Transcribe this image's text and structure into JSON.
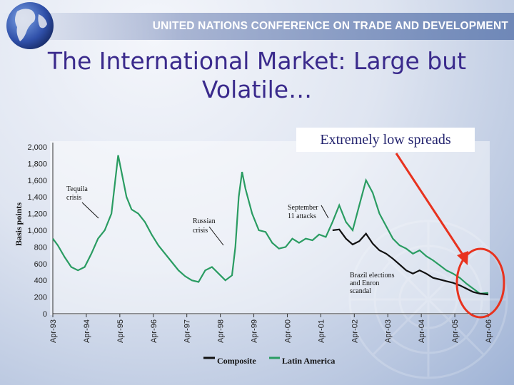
{
  "header": {
    "banner_text": "UNITED NATIONS CONFERENCE ON TRADE AND DEVELOPMENT",
    "title_line1": "The International Market: Large but",
    "title_line2": "Volatile…"
  },
  "callout": {
    "text": "Extremely low spreads"
  },
  "colors": {
    "composite": "#111111",
    "latin_america": "#2a9c62",
    "arrow": "#e8321e",
    "title": "#3a2a8c"
  },
  "chart_data": {
    "type": "line",
    "xlabel": "",
    "ylabel": "Basis points",
    "ylim": [
      0,
      2000
    ],
    "yticks": [
      "0",
      "200",
      "400",
      "600",
      "800",
      "1,000",
      "1,200",
      "1,400",
      "1,600",
      "1,800",
      "2,000"
    ],
    "xticks": [
      "Apr-93",
      "Apr-94",
      "Apr-95",
      "Apr-96",
      "Apr-97",
      "Apr-98",
      "Apr-99",
      "Apr-00",
      "Apr-01",
      "Apr-02",
      "Apr-03",
      "Apr-04",
      "Apr-05",
      "Apr-06"
    ],
    "x_range": [
      1993.25,
      2006.25
    ],
    "series": [
      {
        "name": "Composite",
        "points": [
          [
            2001.6,
            1000
          ],
          [
            2001.8,
            1010
          ],
          [
            2002.0,
            900
          ],
          [
            2002.2,
            830
          ],
          [
            2002.4,
            870
          ],
          [
            2002.6,
            960
          ],
          [
            2002.8,
            840
          ],
          [
            2003.0,
            760
          ],
          [
            2003.2,
            720
          ],
          [
            2003.4,
            660
          ],
          [
            2003.6,
            590
          ],
          [
            2003.8,
            520
          ],
          [
            2004.0,
            480
          ],
          [
            2004.2,
            520
          ],
          [
            2004.4,
            480
          ],
          [
            2004.6,
            430
          ],
          [
            2004.8,
            410
          ],
          [
            2005.0,
            390
          ],
          [
            2005.2,
            370
          ],
          [
            2005.4,
            340
          ],
          [
            2005.6,
            300
          ],
          [
            2005.8,
            260
          ],
          [
            2006.0,
            240
          ],
          [
            2006.25,
            230
          ]
        ]
      },
      {
        "name": "Latin America",
        "points": [
          [
            1993.25,
            900
          ],
          [
            1993.4,
            820
          ],
          [
            1993.6,
            680
          ],
          [
            1993.8,
            560
          ],
          [
            1994.0,
            520
          ],
          [
            1994.2,
            560
          ],
          [
            1994.4,
            720
          ],
          [
            1994.6,
            900
          ],
          [
            1994.8,
            1000
          ],
          [
            1995.0,
            1200
          ],
          [
            1995.1,
            1550
          ],
          [
            1995.2,
            1900
          ],
          [
            1995.3,
            1700
          ],
          [
            1995.45,
            1400
          ],
          [
            1995.6,
            1250
          ],
          [
            1995.8,
            1200
          ],
          [
            1996.0,
            1100
          ],
          [
            1996.2,
            950
          ],
          [
            1996.4,
            820
          ],
          [
            1996.6,
            720
          ],
          [
            1996.8,
            620
          ],
          [
            1997.0,
            520
          ],
          [
            1997.2,
            450
          ],
          [
            1997.4,
            400
          ],
          [
            1997.6,
            380
          ],
          [
            1997.8,
            520
          ],
          [
            1998.0,
            560
          ],
          [
            1998.2,
            480
          ],
          [
            1998.4,
            400
          ],
          [
            1998.6,
            460
          ],
          [
            1998.7,
            800
          ],
          [
            1998.8,
            1400
          ],
          [
            1998.9,
            1700
          ],
          [
            1999.0,
            1500
          ],
          [
            1999.2,
            1200
          ],
          [
            1999.4,
            1000
          ],
          [
            1999.6,
            980
          ],
          [
            1999.8,
            850
          ],
          [
            2000.0,
            780
          ],
          [
            2000.2,
            800
          ],
          [
            2000.4,
            900
          ],
          [
            2000.6,
            850
          ],
          [
            2000.8,
            900
          ],
          [
            2001.0,
            880
          ],
          [
            2001.2,
            950
          ],
          [
            2001.4,
            920
          ],
          [
            2001.6,
            1100
          ],
          [
            2001.8,
            1300
          ],
          [
            2002.0,
            1100
          ],
          [
            2002.2,
            1000
          ],
          [
            2002.4,
            1300
          ],
          [
            2002.6,
            1600
          ],
          [
            2002.8,
            1450
          ],
          [
            2003.0,
            1200
          ],
          [
            2003.2,
            1050
          ],
          [
            2003.4,
            900
          ],
          [
            2003.6,
            820
          ],
          [
            2003.8,
            780
          ],
          [
            2004.0,
            720
          ],
          [
            2004.2,
            760
          ],
          [
            2004.4,
            690
          ],
          [
            2004.6,
            640
          ],
          [
            2004.8,
            580
          ],
          [
            2005.0,
            520
          ],
          [
            2005.2,
            480
          ],
          [
            2005.4,
            430
          ],
          [
            2005.6,
            360
          ],
          [
            2005.8,
            300
          ],
          [
            2006.0,
            240
          ],
          [
            2006.25,
            250
          ]
        ]
      }
    ],
    "annotations": [
      {
        "line1": "Tequila",
        "line2": "crisis"
      },
      {
        "line1": "Russian",
        "line2": "crisis"
      },
      {
        "line1": "September",
        "line2": "11 attacks"
      },
      {
        "line1": "Brazil elections",
        "line2": "and Enron",
        "line3": "scandal"
      }
    ],
    "legend": [
      {
        "label": "Composite"
      },
      {
        "label": "Latin America"
      }
    ],
    "legend_position": "bottom"
  }
}
